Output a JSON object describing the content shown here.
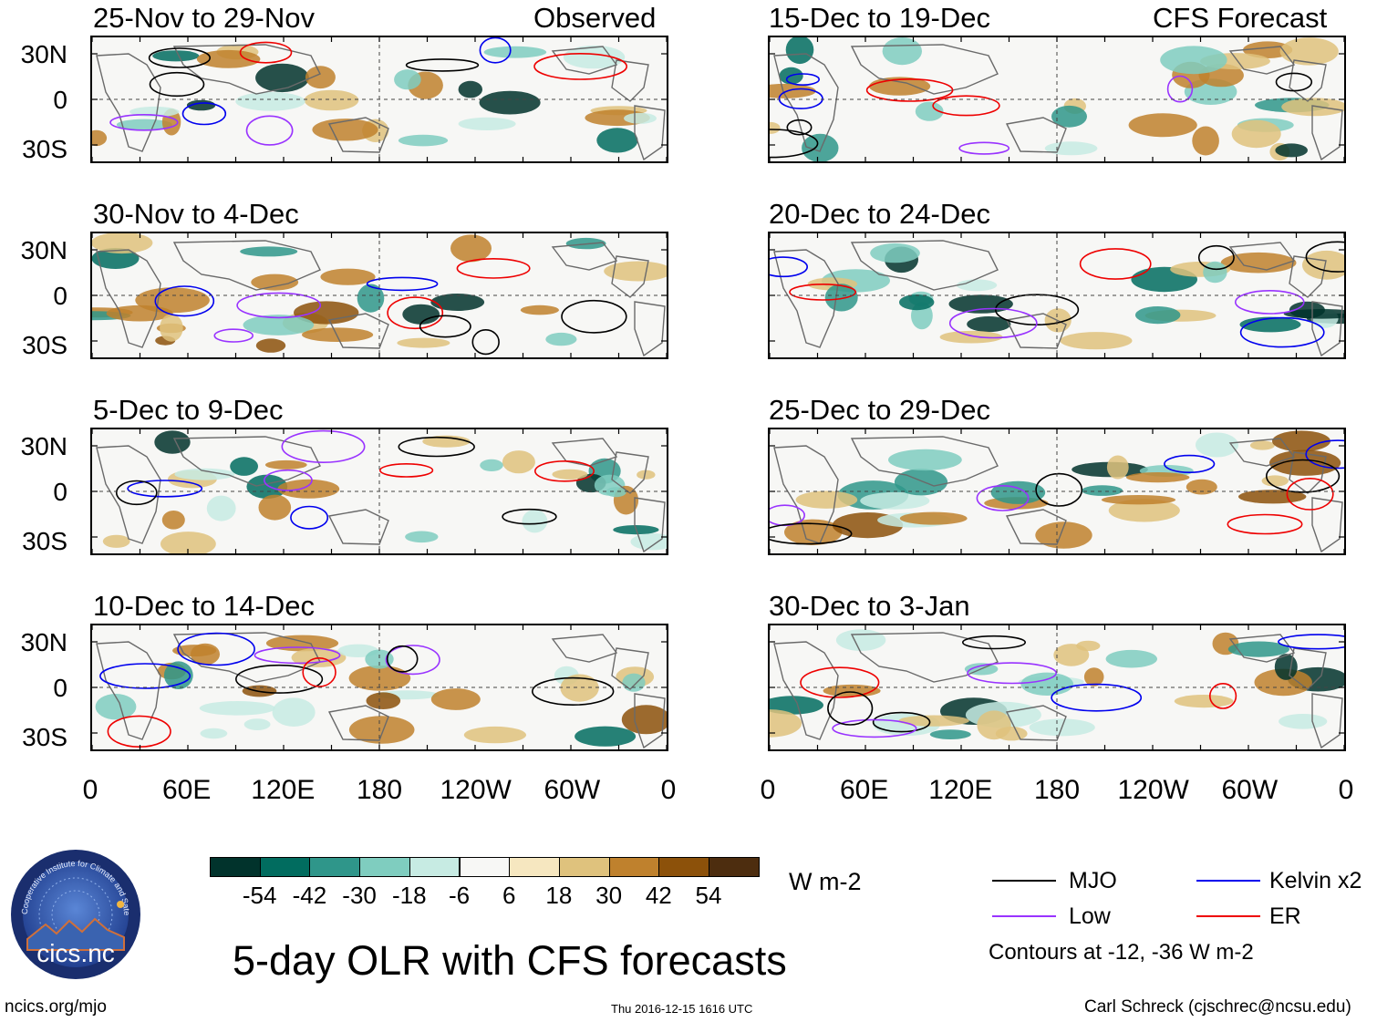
{
  "header": {
    "observed_label": "Observed",
    "forecast_label": "CFS Forecast"
  },
  "panels": [
    {
      "title": "25-Nov to 29-Nov",
      "kind": "observed"
    },
    {
      "title": "30-Nov to 4-Dec",
      "kind": "observed"
    },
    {
      "title": "5-Dec to 9-Dec",
      "kind": "observed"
    },
    {
      "title": "10-Dec to 14-Dec",
      "kind": "observed"
    },
    {
      "title": "15-Dec to 19-Dec",
      "kind": "forecast"
    },
    {
      "title": "20-Dec to 24-Dec",
      "kind": "forecast"
    },
    {
      "title": "25-Dec to 29-Dec",
      "kind": "forecast"
    },
    {
      "title": "30-Dec to 3-Jan",
      "kind": "forecast"
    }
  ],
  "axes": {
    "lat_labels": [
      "30N",
      "0",
      "30S"
    ],
    "lon_labels": [
      "0",
      "60E",
      "120E",
      "180",
      "120W",
      "60W",
      "0"
    ]
  },
  "colorbar": {
    "colors": [
      "#01332c",
      "#016c5f",
      "#2f968a",
      "#7fcdbf",
      "#c7ebe3",
      "#f7f7f5",
      "#f6e7c0",
      "#dfc27d",
      "#bf812d",
      "#8c510a",
      "#4d2d0f"
    ],
    "labels": [
      "-54",
      "-42",
      "-30",
      "-18",
      "-6",
      "6",
      "18",
      "30",
      "42",
      "54"
    ],
    "units": "W m-2"
  },
  "legend": {
    "items": [
      {
        "label": "MJO",
        "color": "#000000"
      },
      {
        "label": "Kelvin x2",
        "color": "#0000ee"
      },
      {
        "label": "Low",
        "color": "#9933ff"
      },
      {
        "label": "ER",
        "color": "#ee0000"
      }
    ],
    "contours_note": "Contours at -12, -36 W m-2"
  },
  "logo": {
    "name": "cics.nc",
    "ring_text": "Cooperative Institute for Climate and Satellites"
  },
  "main_title": "5-day OLR with CFS forecasts",
  "footer": {
    "left": "ncics.org/mjo",
    "center": "Thu 2016-12-15 1616 UTC",
    "right": "Carl Schreck (cjschrec@ncsu.edu)"
  }
}
